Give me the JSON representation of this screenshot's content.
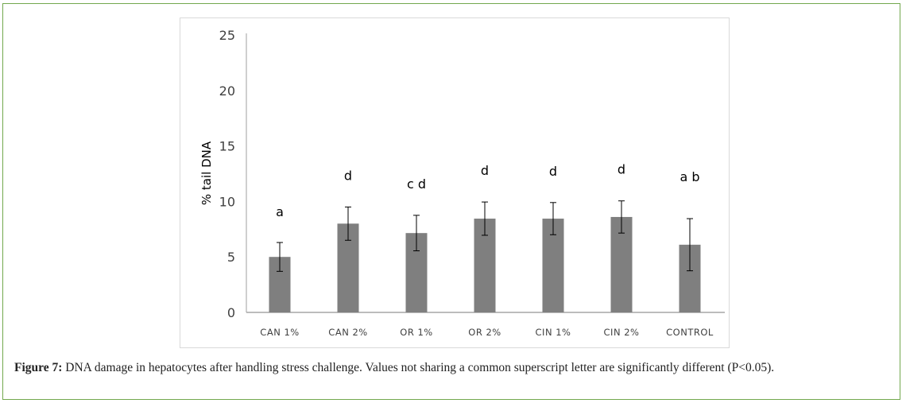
{
  "chart_data": {
    "type": "bar",
    "title": "",
    "xlabel": "",
    "ylabel": "% tail DNA",
    "ylim": [
      0,
      25
    ],
    "yticks": [
      0,
      5,
      10,
      15,
      20,
      25
    ],
    "grid": false,
    "categories": [
      "CAN 1%",
      "CAN 2%",
      "OR 1%",
      "OR 2%",
      "CIN 1%",
      "CIN 2%",
      "CONTROL"
    ],
    "values": [
      5.0,
      8.0,
      7.15,
      8.45,
      8.45,
      8.6,
      6.1
    ],
    "errors": [
      1.3,
      1.5,
      1.6,
      1.5,
      1.45,
      1.45,
      2.35
    ],
    "annotations": [
      "a",
      "d",
      "c d",
      "d",
      "d",
      "d",
      "a b"
    ],
    "bar_color": "#7f7f7f"
  },
  "caption": {
    "label": "Figure 7:",
    "text": " DNA damage in hepatocytes after handling stress challenge. Values not sharing a common superscript letter are significantly different (P<0.05)."
  }
}
